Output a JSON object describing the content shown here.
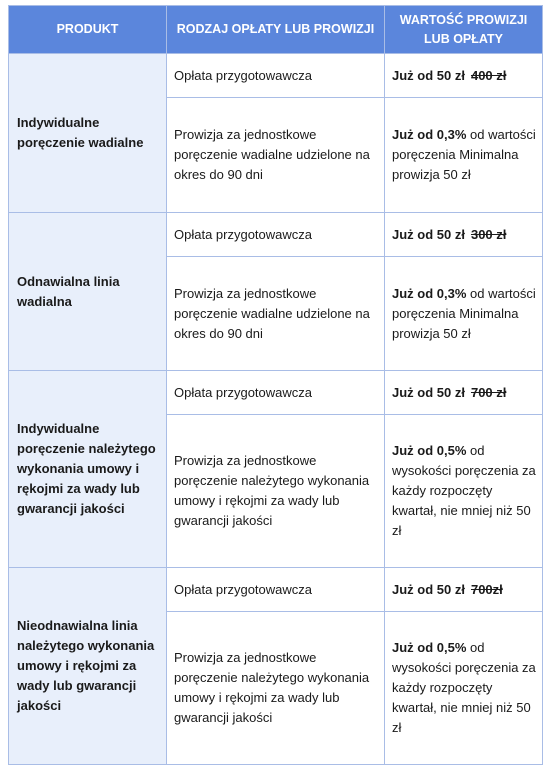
{
  "headers": [
    "PRODUKT",
    "RODZAJ OPŁATY LUB PROWIZJI",
    "WARTOŚĆ PROWIZJI LUB OPŁATY"
  ],
  "rows": [
    {
      "product": "Indywidualne poręczenie wadialne",
      "fee1": "Opłata przygotowawcza",
      "val1_new": "Już od 50 zł",
      "val1_old": "400 zł",
      "fee2": "Prowizja za jednostkowe poręczenie wadialne udzielone na okres do 90 dni",
      "val2_bold": "Już od 0,3%",
      "val2_rest": " od wartości poręczenia Minimalna prowizja 50 zł"
    },
    {
      "product": "Odnawialna linia wadialna",
      "fee1": "Opłata przygotowawcza",
      "val1_new": "Już od 50 zł",
      "val1_old": "300 zł",
      "fee2": "Prowizja za jednostkowe poręczenie wadialne udzielone na okres do 90 dni",
      "val2_bold": "Już od 0,3%",
      "val2_rest": " od wartości poręczenia Minimalna prowizja 50 zł"
    },
    {
      "product": "Indywidualne poręczenie należytego wykonania umowy i rękojmi za wady lub gwarancji jakości",
      "fee1": "Opłata przygotowawcza",
      "val1_new": "Już od 50 zł",
      "val1_old": "700 zł",
      "fee2": "Prowizja za jednostkowe poręczenie należytego wykonania umowy i rękojmi za wady lub gwarancji jakości",
      "val2_bold": "Już od 0,5%",
      "val2_rest": " od wysokości poręczenia za każdy rozpoczęty kwartał, nie mniej niż 50 zł"
    },
    {
      "product": "Nieodnawialna linia należytego wykonania umowy i rękojmi za wady lub gwarancji jakości",
      "fee1": "Opłata przygotowawcza",
      "val1_new": "Już od 50 zł",
      "val1_old": "700zł",
      "fee2": "Prowizja za jednostkowe poręczenie należytego wykonania umowy i rękojmi za wady lub gwarancji jakości",
      "val2_bold": "Już od 0,5%",
      "val2_rest": " od wysokości poręczenia za każdy rozpoczęty kwartał, nie mniej niż 50 zł"
    }
  ]
}
